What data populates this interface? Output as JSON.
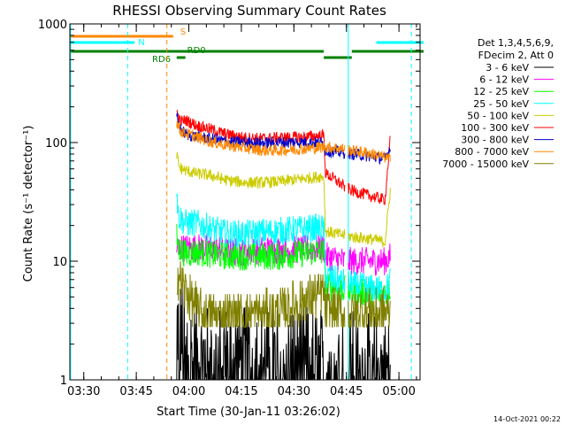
{
  "chart_data": {
    "type": "line",
    "title": "RHESSI Observing Summary Count Rates",
    "xlabel": "Start Time (30-Jan-11 03:26:02)",
    "ylabel": "Count Rate (s⁻¹ detector⁻¹)",
    "yscale": "log",
    "ylim": [
      1,
      1000
    ],
    "xlim_minutes": [
      0,
      100
    ],
    "y_ticks": [
      {
        "value": 1,
        "label": "1"
      },
      {
        "value": 10,
        "label": "10"
      },
      {
        "value": 100,
        "label": "100"
      },
      {
        "value": 1000,
        "label": "1000"
      }
    ],
    "x_ticks": [
      {
        "minute": 3.97,
        "label": "03:30"
      },
      {
        "minute": 18.97,
        "label": "03:45"
      },
      {
        "minute": 33.97,
        "label": "04:00"
      },
      {
        "minute": 48.97,
        "label": "04:15"
      },
      {
        "minute": 63.97,
        "label": "04:30"
      },
      {
        "minute": 78.97,
        "label": "04:45"
      },
      {
        "minute": 93.97,
        "label": "05:00"
      }
    ],
    "legend_header": [
      "Det 1,3,4,5,6,9,",
      "FDecim 2, Att 0"
    ],
    "footer": "14-Oct-2021 00:22",
    "data_start_minute": 30.5,
    "data_end_minute": 91.5,
    "gap": [
      78.5,
      79.5
    ],
    "series": [
      {
        "name": "3 - 6 keV",
        "color": "#000000",
        "points": [
          [
            30.5,
            3.0
          ],
          [
            32,
            2.6
          ],
          [
            35,
            1.6
          ],
          [
            40,
            1.5
          ],
          [
            45,
            1.6
          ],
          [
            50,
            1.5
          ],
          [
            55,
            1.6
          ],
          [
            60,
            1.5
          ],
          [
            65,
            1.6
          ],
          [
            70,
            1.5
          ],
          [
            75,
            1.4
          ],
          [
            78.5,
            1.5
          ],
          [
            81,
            1.4
          ],
          [
            85,
            1.3
          ],
          [
            88,
            1.3
          ],
          [
            90,
            1.2
          ],
          [
            91.5,
            1.2
          ]
        ]
      },
      {
        "name": "6 - 12 keV",
        "color": "#ff00ff",
        "points": [
          [
            30.5,
            13
          ],
          [
            31.5,
            13
          ],
          [
            34,
            13
          ],
          [
            40,
            13
          ],
          [
            45,
            12
          ],
          [
            50,
            12
          ],
          [
            55,
            12.5
          ],
          [
            60,
            12.5
          ],
          [
            65,
            12.5
          ],
          [
            70,
            13
          ],
          [
            72.5,
            13
          ],
          [
            73,
            11
          ],
          [
            76,
            10.5
          ],
          [
            78.5,
            10
          ],
          [
            81,
            10
          ],
          [
            85,
            10
          ],
          [
            88,
            10
          ],
          [
            90,
            10
          ],
          [
            91.5,
            11
          ]
        ]
      },
      {
        "name": "12 - 25 keV",
        "color": "#00ff00",
        "points": [
          [
            30.5,
            16
          ],
          [
            31,
            13
          ],
          [
            33,
            11.5
          ],
          [
            36,
            12
          ],
          [
            40,
            11.5
          ],
          [
            45,
            11
          ],
          [
            50,
            11
          ],
          [
            55,
            11
          ],
          [
            60,
            11
          ],
          [
            65,
            11.5
          ],
          [
            70,
            12
          ],
          [
            72.5,
            12
          ],
          [
            73,
            6
          ],
          [
            76,
            6
          ],
          [
            78.5,
            5.8
          ],
          [
            81,
            5.5
          ],
          [
            85,
            5.4
          ],
          [
            88,
            5.4
          ],
          [
            90,
            5.4
          ],
          [
            91.5,
            6
          ]
        ]
      },
      {
        "name": "25 - 50 keV",
        "color": "#00ffff",
        "points": [
          [
            30.5,
            40
          ],
          [
            31,
            24
          ],
          [
            33,
            21
          ],
          [
            36,
            21
          ],
          [
            40,
            19
          ],
          [
            45,
            17
          ],
          [
            50,
            17
          ],
          [
            55,
            17.5
          ],
          [
            60,
            18
          ],
          [
            65,
            18.5
          ],
          [
            70,
            19
          ],
          [
            72.5,
            19
          ],
          [
            73,
            7.5
          ],
          [
            76,
            7
          ],
          [
            78.5,
            6.6
          ],
          [
            81,
            6.3
          ],
          [
            85,
            6
          ],
          [
            88,
            5.8
          ],
          [
            90,
            5.5
          ],
          [
            91.5,
            7
          ]
        ]
      },
      {
        "name": "50 - 100 keV",
        "color": "#cccc00",
        "points": [
          [
            30.5,
            80
          ],
          [
            31.2,
            62
          ],
          [
            33,
            58
          ],
          [
            36,
            55
          ],
          [
            40,
            53
          ],
          [
            45,
            48
          ],
          [
            50,
            46
          ],
          [
            55,
            46
          ],
          [
            60,
            47
          ],
          [
            65,
            49
          ],
          [
            70,
            51
          ],
          [
            72.5,
            52
          ],
          [
            73,
            18
          ],
          [
            76,
            17
          ],
          [
            78.5,
            16.5
          ],
          [
            81,
            16
          ],
          [
            85,
            15.5
          ],
          [
            88,
            15
          ],
          [
            90,
            14.5
          ],
          [
            91.5,
            40
          ]
        ]
      },
      {
        "name": "100 - 300 keV",
        "color": "#ff0000",
        "points": [
          [
            30.5,
            180
          ],
          [
            31.5,
            150
          ],
          [
            33,
            155
          ],
          [
            36,
            140
          ],
          [
            40,
            130
          ],
          [
            45,
            117
          ],
          [
            50,
            110
          ],
          [
            55,
            108
          ],
          [
            60,
            110
          ],
          [
            65,
            111
          ],
          [
            70,
            113
          ],
          [
            72.5,
            115
          ],
          [
            73,
            55
          ],
          [
            76,
            48
          ],
          [
            78.5,
            42
          ],
          [
            81,
            39
          ],
          [
            85,
            36
          ],
          [
            88,
            34
          ],
          [
            90,
            33
          ],
          [
            91.5,
            110
          ]
        ]
      },
      {
        "name": "300 - 800 keV",
        "color": "#0000cc",
        "points": [
          [
            30.5,
            165
          ],
          [
            31.5,
            130
          ],
          [
            33,
            118
          ],
          [
            36,
            112
          ],
          [
            40,
            108
          ],
          [
            45,
            102
          ],
          [
            50,
            100
          ],
          [
            55,
            99
          ],
          [
            60,
            100
          ],
          [
            65,
            101
          ],
          [
            70,
            100
          ],
          [
            72.5,
            99
          ],
          [
            73,
            85
          ],
          [
            76,
            84
          ],
          [
            78.5,
            82
          ],
          [
            81,
            80
          ],
          [
            85,
            77
          ],
          [
            88,
            75
          ],
          [
            90,
            73
          ],
          [
            91.5,
            90
          ]
        ]
      },
      {
        "name": "800 - 7000 keV",
        "color": "#ff8800",
        "points": [
          [
            30.5,
            150
          ],
          [
            31.5,
            125
          ],
          [
            33,
            120
          ],
          [
            36,
            112
          ],
          [
            40,
            102
          ],
          [
            45,
            95
          ],
          [
            50,
            90
          ],
          [
            55,
            86
          ],
          [
            60,
            86
          ],
          [
            65,
            88
          ],
          [
            70,
            90
          ],
          [
            72.5,
            92
          ],
          [
            73,
            92
          ],
          [
            76,
            90
          ],
          [
            78.5,
            88
          ],
          [
            81,
            85
          ],
          [
            85,
            82
          ],
          [
            88,
            78
          ],
          [
            90,
            75
          ],
          [
            91.5,
            72
          ]
        ]
      },
      {
        "name": "7000 - 15000 keV",
        "color": "#808000",
        "points": [
          [
            30.5,
            8
          ],
          [
            32,
            6.5
          ],
          [
            34,
            5
          ],
          [
            36,
            4.2
          ],
          [
            38,
            3.6
          ],
          [
            40,
            3.5
          ],
          [
            45,
            3.5
          ],
          [
            50,
            3.5
          ],
          [
            55,
            3.6
          ],
          [
            60,
            3.8
          ],
          [
            65,
            4.4
          ],
          [
            70,
            5
          ],
          [
            72.5,
            5.5
          ],
          [
            73,
            3.8
          ],
          [
            76,
            3.8
          ],
          [
            78.5,
            3.5
          ],
          [
            81,
            3.6
          ],
          [
            85,
            3.8
          ],
          [
            88,
            3.6
          ],
          [
            90,
            3.8
          ],
          [
            91.5,
            3.5
          ]
        ]
      }
    ],
    "flags": [
      {
        "name": "S",
        "label": "S",
        "color": "#ff8800",
        "segments": [
          [
            0,
            29.5
          ]
        ]
      },
      {
        "name": "N",
        "label": "N",
        "color": "#00ffff",
        "segments": [
          [
            0,
            18.5
          ],
          [
            87.5,
            101
          ]
        ]
      },
      {
        "name": "RD0",
        "label": "RD0",
        "color": "#008000",
        "segments": [
          [
            0,
            72.5
          ],
          [
            80.5,
            101
          ]
        ]
      },
      {
        "name": "RD6",
        "label": "RD6",
        "color": "#008000",
        "segments": [
          [
            30.5,
            33
          ],
          [
            72.5,
            80.5
          ]
        ]
      }
    ],
    "vertical_lines": [
      {
        "name": "cyan-edge-left",
        "minute": 0.2,
        "color": "#00ffff",
        "style": "solid"
      },
      {
        "name": "cyan-dashed-1",
        "minute": 16.5,
        "color": "#00ffff",
        "style": "dashed"
      },
      {
        "name": "orange-dashed",
        "minute": 27.7,
        "color": "#ff8800",
        "style": "dashed"
      },
      {
        "name": "cyan-solid-2",
        "minute": 79.5,
        "color": "#00ffff",
        "style": "solid"
      },
      {
        "name": "cyan-dashed-2",
        "minute": 97.5,
        "color": "#00ffff",
        "style": "dashed"
      }
    ]
  }
}
